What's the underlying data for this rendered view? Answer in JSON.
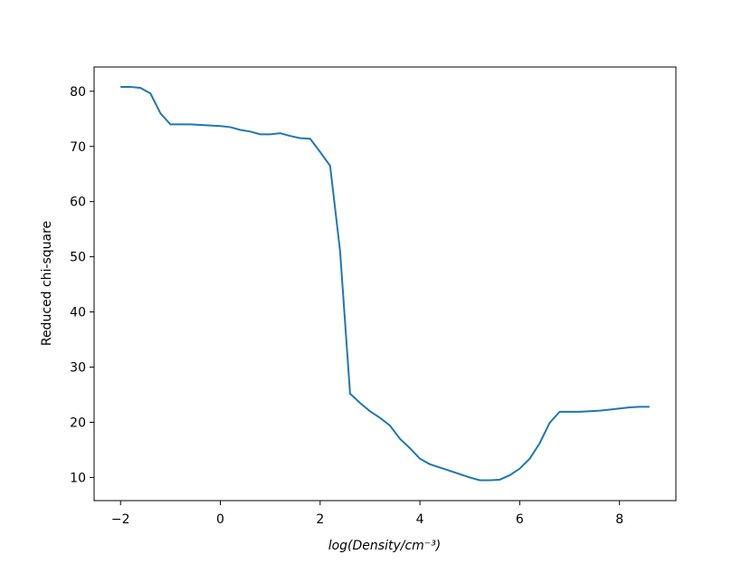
{
  "chart_data": {
    "type": "line",
    "x_label": "log(Density/cm⁻³)",
    "y_label": "Reduced chi-square",
    "x": [
      -2,
      -1.8,
      -1.6,
      -1.4,
      -1.2,
      -1.0,
      -0.8,
      -0.6,
      -0.4,
      -0.2,
      0,
      0.2,
      0.4,
      0.6,
      0.8,
      1.0,
      1.2,
      1.4,
      1.6,
      1.8,
      2.0,
      2.2,
      2.4,
      2.6,
      2.8,
      3.0,
      3.2,
      3.4,
      3.6,
      3.8,
      4.0,
      4.2,
      4.4,
      4.6,
      4.8,
      5.0,
      5.2,
      5.4,
      5.6,
      5.8,
      6.0,
      6.2,
      6.4,
      6.6,
      6.8,
      7.0,
      7.2,
      7.4,
      7.6,
      7.8,
      8.0,
      8.2,
      8.4,
      8.6
    ],
    "series": [
      {
        "color": "#1f77b4",
        "values": [
          80.8,
          80.8,
          80.6,
          79.6,
          76,
          74,
          74,
          74,
          73.9,
          73.8,
          73.7,
          73.5,
          73,
          72.7,
          72.2,
          72.2,
          72.4,
          71.9,
          71.5,
          71.4,
          69,
          66.5,
          51,
          25.2,
          23.5,
          22,
          20.8,
          19.4,
          17,
          15.3,
          13.4,
          12.4,
          11.8,
          11.2,
          10.6,
          10,
          9.5,
          9.5,
          9.6,
          10.4,
          11.6,
          13.4,
          16.2,
          19.9,
          21.9,
          21.9,
          21.9,
          22,
          22.1,
          22.3,
          22.5,
          22.7,
          22.8,
          22.8
        ]
      }
    ],
    "xlim": [
      -2.53,
      9.13
    ],
    "ylim": [
      5.8,
      84.4
    ],
    "xticks": [
      {
        "value": -2,
        "label": "−2"
      },
      0,
      2,
      4,
      6,
      8
    ],
    "yticks": [
      10,
      20,
      30,
      40,
      50,
      60,
      70,
      80
    ],
    "grid": false
  }
}
